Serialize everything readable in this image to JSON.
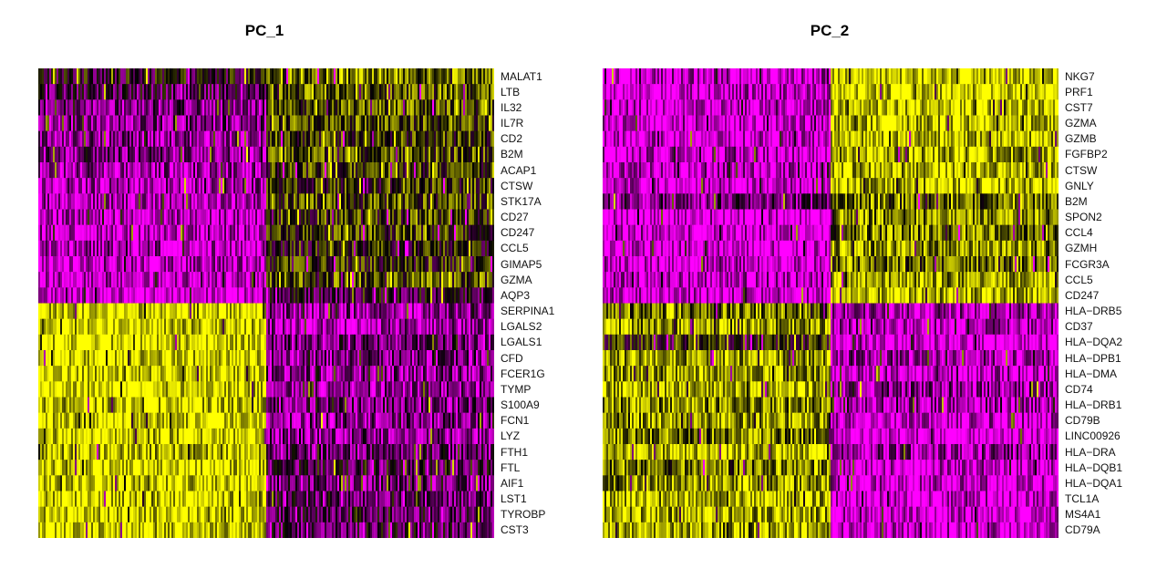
{
  "chart_data": [
    {
      "type": "heatmap",
      "title": "PC_1",
      "genes": [
        "MALAT1",
        "LTB",
        "IL32",
        "IL7R",
        "CD2",
        "B2M",
        "ACAP1",
        "CTSW",
        "STK17A",
        "CD27",
        "CD247",
        "CCL5",
        "GIMAP5",
        "GZMA",
        "AQP3",
        "SERPINA1",
        "LGALS2",
        "LGALS1",
        "CFD",
        "FCER1G",
        "TYMP",
        "S100A9",
        "FCN1",
        "LYZ",
        "FTH1",
        "FTL",
        "AIF1",
        "LST1",
        "TYROBP",
        "CST3"
      ],
      "cell_groups": [
        "left",
        "right"
      ],
      "group_fraction": [
        0.5,
        0.5
      ],
      "mean_level": [
        [
          0.45,
          0.74
        ],
        [
          0.35,
          0.68
        ],
        [
          0.3,
          0.66
        ],
        [
          0.25,
          0.66
        ],
        [
          0.22,
          0.6
        ],
        [
          0.27,
          0.64
        ],
        [
          0.18,
          0.6
        ],
        [
          0.16,
          0.58
        ],
        [
          0.15,
          0.62
        ],
        [
          0.14,
          0.6
        ],
        [
          0.13,
          0.6
        ],
        [
          0.16,
          0.54
        ],
        [
          0.12,
          0.56
        ],
        [
          0.12,
          0.66
        ],
        [
          0.05,
          0.4
        ],
        [
          0.93,
          0.2
        ],
        [
          0.9,
          0.18
        ],
        [
          0.93,
          0.28
        ],
        [
          0.92,
          0.25
        ],
        [
          0.92,
          0.22
        ],
        [
          0.93,
          0.24
        ],
        [
          0.91,
          0.3
        ],
        [
          0.92,
          0.26
        ],
        [
          0.92,
          0.25
        ],
        [
          0.86,
          0.3
        ],
        [
          0.92,
          0.34
        ],
        [
          0.92,
          0.28
        ],
        [
          0.91,
          0.3
        ],
        [
          0.92,
          0.35
        ],
        [
          0.93,
          0.36
        ]
      ],
      "colorscale": [
        "#ff00ff",
        "#000000",
        "#ffff00"
      ]
    },
    {
      "type": "heatmap",
      "title": "PC_2",
      "genes": [
        "NKG7",
        "PRF1",
        "CST7",
        "GZMA",
        "GZMB",
        "FGFBP2",
        "CTSW",
        "GNLY",
        "B2M",
        "SPON2",
        "CCL4",
        "GZMH",
        "FCGR3A",
        "CCL5",
        "CD247",
        "HLA−DRB5",
        "CD37",
        "HLA−DQA2",
        "HLA−DPB1",
        "HLA−DMA",
        "CD74",
        "HLA−DRB1",
        "CD79B",
        "LINC00926",
        "HLA−DRA",
        "HLA−DQB1",
        "HLA−DQA1",
        "TCL1A",
        "MS4A1",
        "CD79A"
      ],
      "cell_groups": [
        "left",
        "right"
      ],
      "group_fraction": [
        0.5,
        0.5
      ],
      "mean_level": [
        [
          0.12,
          0.92
        ],
        [
          0.1,
          0.9
        ],
        [
          0.1,
          0.9
        ],
        [
          0.1,
          0.88
        ],
        [
          0.08,
          0.86
        ],
        [
          0.1,
          0.84
        ],
        [
          0.12,
          0.85
        ],
        [
          0.08,
          0.86
        ],
        [
          0.3,
          0.7
        ],
        [
          0.05,
          0.74
        ],
        [
          0.1,
          0.72
        ],
        [
          0.06,
          0.76
        ],
        [
          0.1,
          0.7
        ],
        [
          0.12,
          0.82
        ],
        [
          0.1,
          0.85
        ],
        [
          0.72,
          0.18
        ],
        [
          0.82,
          0.15
        ],
        [
          0.55,
          0.05
        ],
        [
          0.8,
          0.2
        ],
        [
          0.78,
          0.12
        ],
        [
          0.86,
          0.22
        ],
        [
          0.76,
          0.16
        ],
        [
          0.82,
          0.12
        ],
        [
          0.72,
          0.05
        ],
        [
          0.88,
          0.2
        ],
        [
          0.7,
          0.1
        ],
        [
          0.8,
          0.12
        ],
        [
          0.86,
          0.08
        ],
        [
          0.82,
          0.1
        ],
        [
          0.84,
          0.1
        ]
      ],
      "colorscale": [
        "#ff00ff",
        "#000000",
        "#ffff00"
      ]
    }
  ]
}
